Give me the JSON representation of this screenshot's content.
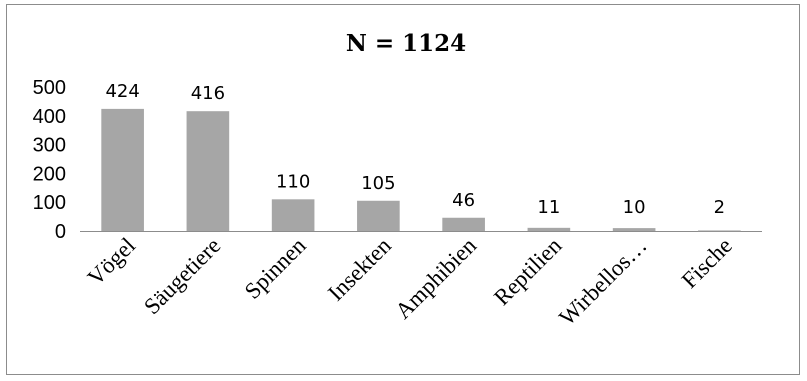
{
  "chart_data": {
    "type": "bar",
    "title": "N = 1124",
    "categories": [
      "Vögel",
      "Säugetiere",
      "Spinnen",
      "Insekten",
      "Amphibien",
      "Reptilien",
      "Wirbellos…",
      "Fische"
    ],
    "values": [
      424,
      416,
      110,
      105,
      46,
      11,
      10,
      2
    ],
    "data_labels": [
      "424",
      "416",
      "110",
      "105",
      "46",
      "11",
      "10",
      "2"
    ],
    "y_ticks": [
      "0",
      "100",
      "200",
      "300",
      "400",
      "500"
    ],
    "ylim": [
      0,
      500
    ],
    "grid": false,
    "legend": "none",
    "bar_color": "#a6a6a6"
  }
}
